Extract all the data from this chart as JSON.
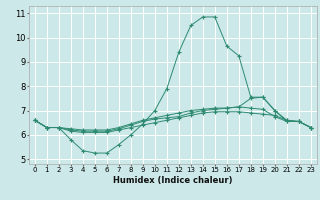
{
  "title": "",
  "xlabel": "Humidex (Indice chaleur)",
  "background_color": "#cce8e8",
  "grid_color": "#ffffff",
  "line_color": "#2e8b72",
  "xlim": [
    -0.5,
    23.5
  ],
  "ylim": [
    4.8,
    11.3
  ],
  "xticks": [
    0,
    1,
    2,
    3,
    4,
    5,
    6,
    7,
    8,
    9,
    10,
    11,
    12,
    13,
    14,
    15,
    16,
    17,
    18,
    19,
    20,
    21,
    22,
    23
  ],
  "yticks": [
    5,
    6,
    7,
    8,
    9,
    10,
    11
  ],
  "lines": [
    {
      "x": [
        0,
        1,
        2,
        3,
        4,
        5,
        6,
        7,
        8,
        9,
        10,
        11,
        12,
        13,
        14,
        15,
        16,
        17,
        18,
        19,
        20,
        21,
        22,
        23
      ],
      "y": [
        6.6,
        6.3,
        6.3,
        5.8,
        5.35,
        5.25,
        5.25,
        5.6,
        6.0,
        6.45,
        7.0,
        7.9,
        9.4,
        10.5,
        10.85,
        10.85,
        9.65,
        9.25,
        7.55,
        7.55,
        7.0,
        6.55,
        6.55,
        6.3
      ]
    },
    {
      "x": [
        0,
        1,
        2,
        3,
        4,
        5,
        6,
        7,
        8,
        9,
        10,
        11,
        12,
        13,
        14,
        15,
        16,
        17,
        18,
        19,
        20,
        21,
        22,
        23
      ],
      "y": [
        6.6,
        6.3,
        6.3,
        6.2,
        6.15,
        6.15,
        6.15,
        6.25,
        6.4,
        6.55,
        6.65,
        6.7,
        6.75,
        6.9,
        7.0,
        7.05,
        7.1,
        7.15,
        7.5,
        7.55,
        7.0,
        6.6,
        6.55,
        6.3
      ]
    },
    {
      "x": [
        0,
        1,
        2,
        3,
        4,
        5,
        6,
        7,
        8,
        9,
        10,
        11,
        12,
        13,
        14,
        15,
        16,
        17,
        18,
        19,
        20,
        21,
        22,
        23
      ],
      "y": [
        6.6,
        6.3,
        6.3,
        6.25,
        6.2,
        6.2,
        6.2,
        6.3,
        6.45,
        6.6,
        6.7,
        6.8,
        6.9,
        7.0,
        7.05,
        7.1,
        7.1,
        7.15,
        7.1,
        7.05,
        6.75,
        6.55,
        6.55,
        6.3
      ]
    },
    {
      "x": [
        0,
        1,
        2,
        3,
        4,
        5,
        6,
        7,
        8,
        9,
        10,
        11,
        12,
        13,
        14,
        15,
        16,
        17,
        18,
        19,
        20,
        21,
        22,
        23
      ],
      "y": [
        6.6,
        6.3,
        6.3,
        6.15,
        6.1,
        6.1,
        6.1,
        6.2,
        6.3,
        6.4,
        6.5,
        6.6,
        6.7,
        6.8,
        6.9,
        6.95,
        6.95,
        6.95,
        6.9,
        6.85,
        6.8,
        6.6,
        6.55,
        6.3
      ]
    }
  ]
}
